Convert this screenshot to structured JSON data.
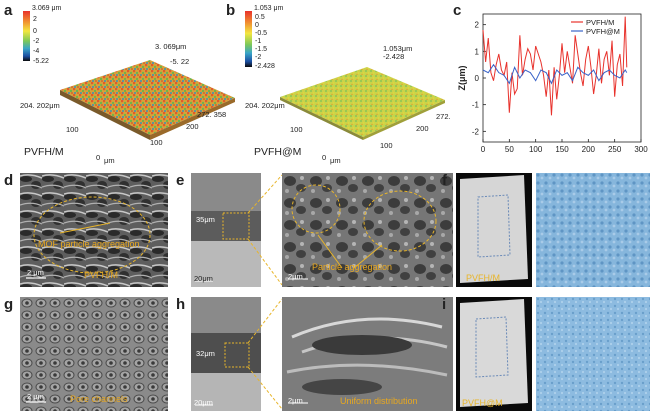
{
  "panel_a": {
    "letter": "a",
    "cb_max": "3.069 μm",
    "cb_ticks": [
      "2",
      "0",
      "-2",
      "-4",
      "-5.22"
    ],
    "peak_label": "3. 069μm",
    "peak_sub": "-5. 22",
    "y_extent": "204. 202μm",
    "x_extent": "272. 358",
    "axis_100": "100",
    "axis_200": "200",
    "axis_100b": "100",
    "axis_0": "0",
    "axis_unit": "μm",
    "caption": "PVFH/M"
  },
  "panel_b": {
    "letter": "b",
    "cb_max": "1.053 μm",
    "cb_ticks": [
      "0.5",
      "0",
      "-0.5",
      "-1",
      "-1.5",
      "-2",
      "-2.428"
    ],
    "peak_label": "1.053μm",
    "peak_sub": "-2.428",
    "y_extent": "204. 202μm",
    "x_extent": "272.",
    "axis_100": "100",
    "axis_200": "200",
    "axis_100b": "100",
    "axis_0": "0",
    "axis_unit": "μm",
    "caption": "PVFH@M"
  },
  "panel_c": {
    "letter": "c",
    "ylabel": "Z(μm)",
    "legend": [
      "PVFH/M",
      "PVFH@M"
    ],
    "colors": {
      "pvfhm": "#e8322c",
      "pvfhatm": "#3a63c8"
    },
    "yticks": [
      "2",
      "1",
      "0",
      "-1",
      "-2"
    ],
    "xticks": [
      "0",
      "50",
      "100",
      "150",
      "200",
      "250",
      "300"
    ]
  },
  "chart_data": {
    "type": "line",
    "title": "",
    "xlabel": "",
    "ylabel": "Z(μm)",
    "xlim": [
      0,
      300
    ],
    "ylim": [
      -2.4,
      2.4
    ],
    "series": [
      {
        "name": "PVFH/M",
        "x": [
          0,
          5,
          10,
          15,
          20,
          25,
          30,
          35,
          40,
          45,
          50,
          55,
          60,
          65,
          70,
          75,
          80,
          85,
          90,
          95,
          100,
          105,
          110,
          115,
          120,
          125,
          130,
          135,
          140,
          145,
          150,
          155,
          160,
          165,
          170,
          175,
          180,
          185,
          190,
          195,
          200,
          205,
          210,
          215,
          220,
          225,
          230,
          235,
          240,
          245,
          250,
          255,
          260,
          265,
          270,
          273
        ],
        "y": [
          1.8,
          0.6,
          1.5,
          0.2,
          -0.1,
          0.5,
          0.9,
          0.3,
          0.1,
          0.6,
          -1.3,
          0.2,
          -0.6,
          -0.4,
          1.6,
          0.1,
          0.7,
          1.1,
          0.9,
          0.3,
          1.2,
          0.9,
          0.6,
          0.1,
          -0.7,
          0.3,
          -1.4,
          0.4,
          -0.8,
          0.1,
          1.3,
          0.2,
          1.0,
          0.4,
          -0.2,
          1.6,
          0.9,
          0.2,
          -0.3,
          0.7,
          1.2,
          0.4,
          -0.6,
          0.1,
          1.1,
          -0.2,
          0.7,
          1.0,
          0.1,
          1.4,
          -0.7,
          0.5,
          0.9,
          -0.3,
          2.3,
          0.4
        ]
      },
      {
        "name": "PVFH@M",
        "x": [
          0,
          10,
          20,
          30,
          40,
          50,
          60,
          70,
          80,
          90,
          100,
          110,
          120,
          130,
          140,
          150,
          160,
          170,
          180,
          190,
          200,
          210,
          220,
          230,
          240,
          250,
          260,
          270,
          273
        ],
        "y": [
          0.3,
          0.2,
          0.5,
          0.2,
          0.1,
          -0.2,
          0.4,
          0.0,
          0.3,
          0.2,
          -0.1,
          0.3,
          0.2,
          -0.2,
          0.3,
          0.1,
          0.2,
          -0.1,
          0.4,
          0.2,
          0.1,
          0.3,
          -0.1,
          0.2,
          0.3,
          0.1,
          0.0,
          0.3,
          0.2
        ]
      }
    ]
  },
  "panel_d": {
    "letter": "d",
    "annotation": "MOF particle aggregation",
    "scale": "2 μm",
    "caption": "PVFH/M"
  },
  "panel_e": {
    "letter": "e",
    "thickness": "35μm",
    "scale_left": "20μm",
    "scale_right": "2μm",
    "annotation": "Particle aggregation"
  },
  "panel_f": {
    "letter": "f",
    "caption": "PVFH/M"
  },
  "panel_g": {
    "letter": "g",
    "annotation": "Pore channels",
    "scale": "2 μm"
  },
  "panel_h": {
    "letter": "h",
    "thickness": "32μm",
    "scale_left": "20μm",
    "scale_right": "2μm",
    "annotation": "Uniform distribution"
  },
  "panel_i": {
    "letter": "i",
    "caption": "PVFH@M"
  }
}
